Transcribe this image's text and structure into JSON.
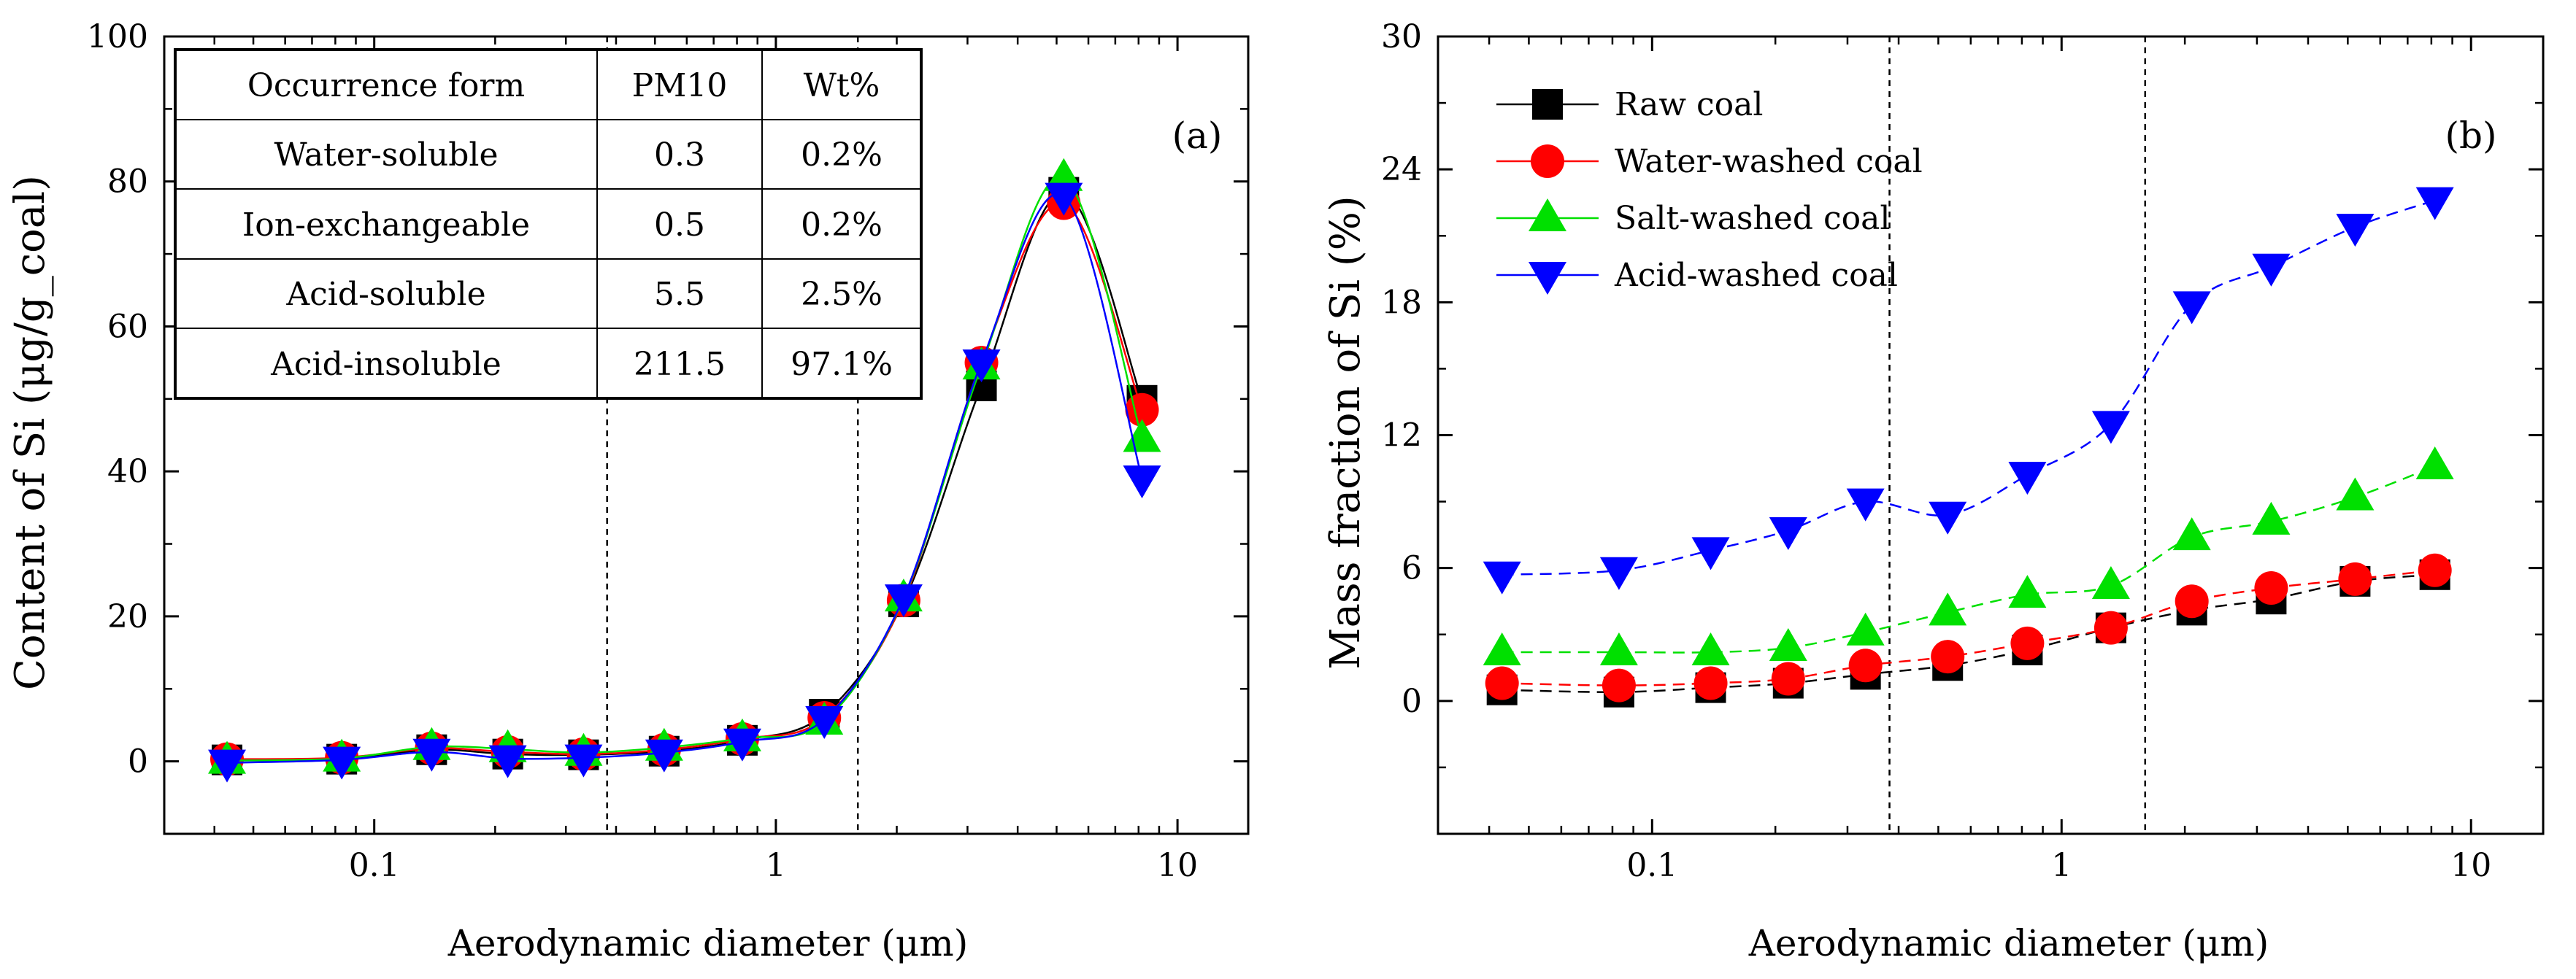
{
  "colors": {
    "raw": "#000000",
    "water": "#ff0000",
    "salt": "#00e000",
    "acid": "#0000ff"
  },
  "chart_data": [
    {
      "type": "line",
      "panel_label": "(a)",
      "xlabel": "Aerodynamic diameter (μm)",
      "ylabel": "Content of Si (μg/g_coal)",
      "xscale": "log",
      "xlim": [
        0.03,
        15
      ],
      "ylim": [
        -10,
        100
      ],
      "yticks": [
        0,
        20,
        40,
        60,
        80,
        100
      ],
      "ytick_labels": [
        "0",
        "20",
        "40",
        "60",
        "80",
        "100"
      ],
      "xticks": [
        0.1,
        1,
        10
      ],
      "xtick_labels": [
        "0.1",
        "1",
        "10"
      ],
      "reference_lines_x": [
        0.38,
        1.6
      ],
      "x": [
        0.043,
        0.083,
        0.139,
        0.215,
        0.332,
        0.527,
        0.825,
        1.32,
        2.08,
        3.25,
        5.21,
        8.16
      ],
      "series": [
        {
          "name": "Raw coal",
          "key": "raw",
          "marker": "square",
          "values": [
            0.2,
            0.3,
            1.6,
            1.0,
            0.9,
            1.4,
            2.9,
            6.5,
            22.0,
            51.8,
            78.5,
            49.8
          ]
        },
        {
          "name": "Water-washed coal",
          "key": "water",
          "marker": "circle",
          "values": [
            0.3,
            0.5,
            1.8,
            1.3,
            1.0,
            1.6,
            3.1,
            6.0,
            22.2,
            55.0,
            77.0,
            48.5
          ]
        },
        {
          "name": "Salt-washed coal",
          "key": "salt",
          "marker": "triangle-up",
          "values": [
            0.1,
            0.4,
            2.0,
            1.7,
            1.2,
            1.9,
            3.2,
            5.5,
            22.5,
            54.5,
            80.5,
            44.5
          ]
        },
        {
          "name": "Acid-washed coal",
          "key": "acid",
          "marker": "triangle-down",
          "values": [
            -0.2,
            0.2,
            1.3,
            0.4,
            0.5,
            1.2,
            2.7,
            5.8,
            22.6,
            55.0,
            78.0,
            39.0
          ]
        }
      ],
      "table": {
        "headers": [
          "Occurrence form",
          "PM10",
          "Wt%"
        ],
        "rows": [
          [
            "Water-soluble",
            "0.3",
            "0.2%"
          ],
          [
            "Ion-exchangeable",
            "0.5",
            "0.2%"
          ],
          [
            "Acid-soluble",
            "5.5",
            "2.5%"
          ],
          [
            "Acid-insoluble",
            "211.5",
            "97.1%"
          ]
        ]
      }
    },
    {
      "type": "line",
      "panel_label": "(b)",
      "xlabel": "Aerodynamic diameter (μm)",
      "ylabel": "Mass fraction of Si (%)",
      "xscale": "log",
      "xlim": [
        0.03,
        15
      ],
      "ylim": [
        -6,
        30
      ],
      "yticks": [
        0,
        6,
        12,
        18,
        24,
        30
      ],
      "ytick_labels": [
        "0",
        "6",
        "12",
        "18",
        "24",
        "30"
      ],
      "xticks": [
        0.1,
        1,
        10
      ],
      "xtick_labels": [
        "0.1",
        "1",
        "10"
      ],
      "reference_lines_x": [
        0.38,
        1.6
      ],
      "x": [
        0.043,
        0.083,
        0.139,
        0.215,
        0.332,
        0.527,
        0.825,
        1.32,
        2.08,
        3.25,
        5.21,
        8.16
      ],
      "legend_position": "top-left",
      "series": [
        {
          "name": "Raw coal",
          "key": "raw",
          "marker": "square",
          "values": [
            0.5,
            0.4,
            0.6,
            0.8,
            1.2,
            1.6,
            2.3,
            3.3,
            4.1,
            4.6,
            5.4,
            5.7
          ]
        },
        {
          "name": "Water-washed coal",
          "key": "water",
          "marker": "circle",
          "values": [
            0.8,
            0.7,
            0.8,
            1.0,
            1.6,
            2.0,
            2.6,
            3.3,
            4.5,
            5.1,
            5.5,
            5.9
          ]
        },
        {
          "name": "Salt-washed coal",
          "key": "salt",
          "marker": "triangle-up",
          "values": [
            2.2,
            2.2,
            2.2,
            2.4,
            3.1,
            4.0,
            4.8,
            5.2,
            7.4,
            8.1,
            9.2,
            10.6
          ]
        },
        {
          "name": "Acid-washed coal",
          "key": "acid",
          "marker": "triangle-down",
          "values": [
            5.7,
            5.9,
            6.8,
            7.7,
            9.0,
            8.4,
            10.2,
            12.5,
            17.9,
            19.6,
            21.4,
            22.6
          ]
        }
      ]
    }
  ]
}
